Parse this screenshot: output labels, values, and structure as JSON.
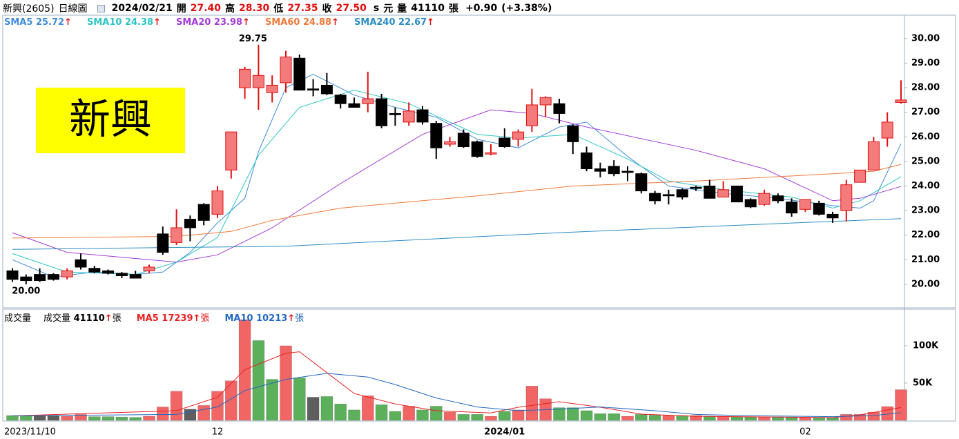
{
  "chart_data": {
    "type": "candlestick",
    "header": [
      "新興(2605)",
      "日線圖",
      "2024/02/21",
      "開",
      "27.40",
      "高",
      "28.30",
      "低",
      "27.35",
      "收",
      "27.50",
      "s",
      "元",
      "量",
      "41110",
      "張",
      "+0.90",
      "(+3.38%)"
    ],
    "watermark": "新興",
    "extremes": {
      "max": "29.75",
      "min": "20.00"
    },
    "legend_arrow": "↑",
    "categories": [
      "2023/11/10",
      null,
      null,
      null,
      null,
      null,
      null,
      null,
      null,
      null,
      null,
      null,
      null,
      null,
      null,
      "12",
      null,
      null,
      null,
      null,
      null,
      null,
      null,
      null,
      null,
      null,
      null,
      null,
      null,
      null,
      null,
      null,
      null,
      null,
      null,
      null,
      "2024/01",
      null,
      null,
      null,
      null,
      null,
      null,
      null,
      null,
      null,
      null,
      null,
      null,
      null,
      null,
      null,
      null,
      null,
      null,
      null,
      null,
      null,
      "02",
      null,
      null,
      null,
      null,
      null,
      null,
      null
    ],
    "open": [
      20.55,
      20.3,
      20.4,
      20.4,
      20.3,
      21.0,
      20.65,
      20.55,
      20.45,
      20.4,
      20.55,
      22.05,
      21.7,
      22.65,
      23.25,
      22.85,
      24.65,
      28.0,
      28.0,
      27.8,
      28.2,
      29.2,
      27.95,
      28.1,
      27.7,
      27.35,
      27.35,
      27.55,
      26.95,
      26.6,
      27.1,
      26.55,
      25.7,
      26.15,
      25.8,
      25.3,
      25.95,
      25.9,
      26.45,
      27.3,
      27.35,
      26.45,
      25.35,
      24.7,
      24.8,
      24.6,
      24.5,
      23.7,
      23.65,
      23.85,
      23.95,
      24.0,
      23.55,
      24.0,
      23.45,
      23.25,
      23.6,
      23.35,
      23.05,
      23.3,
      22.85,
      23.0,
      24.15,
      24.65,
      25.95,
      27.4
    ],
    "high": [
      20.65,
      20.4,
      20.65,
      20.45,
      20.65,
      21.25,
      20.75,
      20.6,
      20.5,
      20.55,
      20.8,
      22.35,
      23.05,
      22.8,
      23.3,
      24.0,
      26.2,
      28.85,
      29.75,
      28.5,
      29.5,
      29.35,
      28.35,
      28.6,
      27.75,
      27.6,
      28.65,
      27.75,
      27.2,
      27.4,
      27.25,
      26.65,
      26.0,
      26.3,
      25.85,
      25.7,
      26.35,
      26.3,
      27.95,
      27.65,
      27.55,
      26.5,
      25.6,
      24.95,
      25.05,
      24.8,
      24.55,
      23.8,
      23.85,
      23.9,
      24.0,
      24.25,
      24.2,
      24.0,
      23.5,
      23.85,
      23.7,
      23.5,
      23.45,
      23.4,
      22.95,
      24.25,
      24.65,
      26.0,
      27.0,
      28.3
    ],
    "low": [
      20.1,
      20.0,
      20.1,
      20.15,
      20.2,
      20.6,
      20.45,
      20.4,
      20.25,
      20.25,
      20.45,
      21.2,
      21.6,
      21.75,
      22.4,
      22.7,
      24.3,
      27.55,
      27.1,
      27.4,
      27.8,
      27.9,
      27.65,
      27.7,
      27.15,
      27.2,
      27.0,
      26.35,
      26.45,
      26.45,
      26.5,
      25.1,
      25.6,
      25.55,
      25.15,
      25.25,
      25.55,
      25.6,
      26.2,
      26.8,
      26.55,
      25.3,
      24.6,
      24.35,
      24.4,
      24.2,
      23.7,
      23.25,
      23.25,
      23.45,
      23.8,
      23.5,
      23.55,
      23.35,
      23.1,
      23.2,
      23.3,
      22.75,
      22.95,
      22.8,
      22.5,
      22.55,
      24.15,
      24.65,
      25.6,
      27.35
    ],
    "close": [
      20.2,
      20.15,
      20.15,
      20.2,
      20.55,
      20.7,
      20.5,
      20.45,
      20.35,
      20.25,
      20.7,
      21.3,
      22.3,
      22.3,
      22.6,
      23.8,
      26.2,
      28.75,
      28.5,
      28.1,
      29.25,
      27.9,
      27.9,
      27.75,
      27.35,
      27.2,
      27.55,
      26.45,
      26.9,
      27.05,
      26.6,
      25.55,
      25.8,
      25.6,
      25.2,
      25.35,
      25.6,
      26.2,
      27.3,
      27.6,
      26.95,
      25.8,
      24.7,
      24.6,
      24.5,
      24.55,
      23.8,
      23.4,
      23.6,
      23.55,
      23.9,
      23.5,
      23.85,
      23.35,
      23.15,
      23.7,
      23.4,
      22.9,
      23.45,
      22.85,
      22.7,
      24.05,
      24.65,
      25.8,
      26.6,
      27.5
    ],
    "up_color": "#f47b7b",
    "up_edge": "#e01010",
    "down_color": "#000000",
    "ylim": [
      19.07,
      30.95
    ],
    "yticks": [
      {
        "value": 20,
        "label": "20.00"
      },
      {
        "value": 21,
        "label": "21.00"
      },
      {
        "value": 22,
        "label": "22.00"
      },
      {
        "value": 23,
        "label": "23.00"
      },
      {
        "value": 24,
        "label": "24.00"
      },
      {
        "value": 25,
        "label": "25.00"
      },
      {
        "value": 26,
        "label": "26.00"
      },
      {
        "value": 27,
        "label": "27.00"
      },
      {
        "value": 28,
        "label": "28.00"
      },
      {
        "value": 29,
        "label": "29.00"
      },
      {
        "value": 30,
        "label": "30.00"
      }
    ],
    "grid": false,
    "series": [
      {
        "name": "SMA5",
        "color": "#3f8bd8",
        "x": [
          0,
          3,
          6,
          9,
          11,
          13,
          15,
          17,
          18,
          20,
          22,
          25,
          28,
          31,
          34,
          37,
          40,
          42,
          45,
          48,
          52,
          56,
          60,
          62,
          63,
          65
        ],
        "values": [
          21.0,
          20.3,
          20.5,
          20.4,
          20.5,
          21.3,
          22.5,
          23.5,
          25.4,
          28.0,
          28.55,
          27.7,
          27.2,
          26.8,
          25.9,
          25.55,
          26.4,
          26.6,
          25.2,
          24.0,
          23.7,
          23.5,
          23.2,
          23.1,
          23.4,
          25.72
        ]
      },
      {
        "name": "SMA10",
        "color": "#2cc4c4",
        "x": [
          0,
          4,
          9,
          12,
          15,
          18,
          21,
          25,
          29,
          34,
          37,
          41,
          45,
          48,
          52,
          57,
          60,
          62,
          65
        ],
        "values": [
          21.25,
          20.5,
          20.4,
          20.9,
          21.9,
          25.25,
          27.2,
          27.9,
          27.35,
          26.1,
          25.95,
          26.1,
          25.1,
          24.2,
          23.85,
          23.55,
          23.1,
          23.4,
          24.38
        ]
      },
      {
        "name": "SMA20",
        "color": "#a33bd6",
        "x": [
          0,
          4,
          12,
          15,
          19,
          24,
          30,
          35,
          38,
          42,
          50,
          55,
          60,
          62,
          65
        ],
        "values": [
          22.1,
          21.3,
          20.9,
          21.2,
          22.3,
          24.1,
          26.1,
          27.1,
          26.95,
          26.4,
          25.45,
          24.7,
          23.4,
          23.5,
          23.98
        ]
      },
      {
        "name": "SMA60",
        "color": "#f07838",
        "x": [
          0,
          12,
          16,
          19,
          24,
          30,
          34,
          41,
          50,
          60,
          63,
          65
        ],
        "values": [
          21.88,
          21.95,
          22.15,
          22.6,
          23.1,
          23.4,
          23.6,
          24.0,
          24.2,
          24.5,
          24.6,
          24.88
        ]
      },
      {
        "name": "SMA240",
        "color": "#2a8cc4",
        "x": [
          0,
          20,
          40,
          55,
          65
        ],
        "values": [
          21.42,
          21.55,
          22.1,
          22.45,
          22.67
        ]
      }
    ],
    "volume": {
      "title": "成交量",
      "name": "成交量",
      "unit": "張",
      "values": [
        6500,
        6000,
        6000,
        6000,
        5500,
        8000,
        5000,
        5000,
        4500,
        4000,
        5500,
        18000,
        39000,
        15000,
        20000,
        39000,
        53000,
        135000,
        107000,
        55000,
        100000,
        57000,
        31000,
        32000,
        22000,
        14000,
        33000,
        21000,
        12000,
        19000,
        14000,
        19000,
        11000,
        8000,
        8000,
        5500,
        12000,
        14000,
        46000,
        29000,
        17000,
        17000,
        13000,
        9000,
        9000,
        5500,
        8000,
        7000,
        6500,
        6500,
        6500,
        5500,
        5500,
        4600,
        4600,
        4600,
        4600,
        4600,
        3700,
        3700,
        3700,
        8000,
        8000,
        11000,
        18500,
        41110
      ],
      "kinds": [
        "down",
        "down",
        "flat",
        "flat",
        "up",
        "up",
        "down",
        "down",
        "down",
        "down",
        "up",
        "up",
        "up",
        "flat",
        "up",
        "up",
        "up",
        "up",
        "down",
        "down",
        "up",
        "down",
        "flat",
        "down",
        "down",
        "down",
        "up",
        "down",
        "down",
        "up",
        "down",
        "down",
        "up",
        "down",
        "down",
        "up",
        "down",
        "up",
        "up",
        "up",
        "down",
        "down",
        "down",
        "down",
        "down",
        "up",
        "down",
        "down",
        "up",
        "down",
        "up",
        "down",
        "up",
        "down",
        "down",
        "up",
        "down",
        "down",
        "up",
        "down",
        "down",
        "up",
        "up",
        "up",
        "up",
        "up"
      ],
      "palette": {
        "up": "#f26565",
        "down": "#5cb05c",
        "flat": "#5e5e5e"
      },
      "ylim": [
        0,
        149000
      ],
      "yticks": [
        {
          "value": 50000,
          "label": "50K"
        },
        {
          "value": 100000,
          "label": "100K"
        }
      ],
      "series": [
        {
          "name": "MA5",
          "color": "#e82020",
          "x": [
            0,
            12,
            15,
            17,
            20,
            21,
            23,
            25,
            28,
            31,
            35,
            37,
            40,
            43,
            46,
            50,
            60,
            62,
            65
          ],
          "values": [
            6000,
            13000,
            31000,
            68000,
            90000,
            92000,
            64000,
            36000,
            22000,
            13000,
            10000,
            17600,
            25000,
            17600,
            8300,
            5500,
            3700,
            7400,
            17239
          ]
        },
        {
          "name": "MA10",
          "color": "#2368c0",
          "x": [
            0,
            12,
            15,
            17,
            20,
            23,
            26,
            28,
            31,
            34,
            37,
            40,
            43,
            47,
            50,
            55,
            60,
            63,
            65
          ],
          "values": [
            6000,
            8000,
            18000,
            40000,
            55000,
            63000,
            58000,
            48000,
            30000,
            18000,
            13000,
            15000,
            18000,
            13000,
            8000,
            6000,
            5000,
            6500,
            10213
          ]
        }
      ]
    }
  }
}
